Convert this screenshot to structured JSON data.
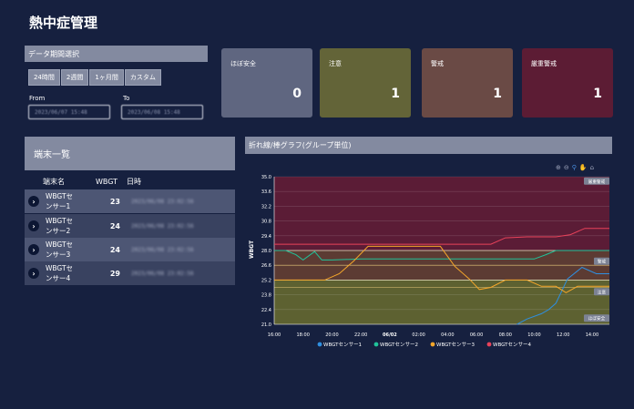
{
  "page": {
    "title": "熱中症管理"
  },
  "period": {
    "header": "データ期間選択",
    "buttons": [
      "24時間",
      "2週間",
      "1ヶ月間",
      "カスタム"
    ],
    "from_label": "From",
    "to_label": "To",
    "from_value": "2023/06/07 15:48",
    "to_value": "2023/06/08 15:48"
  },
  "cards": [
    {
      "label": "ほぼ安全",
      "value": "0",
      "color": "#5f6680"
    },
    {
      "label": "注意",
      "value": "1",
      "color": "#636438"
    },
    {
      "label": "警戒",
      "value": "1",
      "color": "#6a4a45"
    },
    {
      "label": "厳重警戒",
      "value": "1",
      "color": "#5c1c34"
    }
  ],
  "devices": {
    "header": "端末一覧",
    "columns": [
      "端末名",
      "WBGT",
      "日時"
    ],
    "rows": [
      {
        "name_line1": "WBGTセ",
        "name_line2": "ンサー1",
        "wbgt": "23",
        "date": "2023/06/08 23:02:56"
      },
      {
        "name_line1": "WBGTセ",
        "name_line2": "ンサー2",
        "wbgt": "24",
        "date": "2023/06/08 23:02:56"
      },
      {
        "name_line1": "WBGTセ",
        "name_line2": "ンサー3",
        "wbgt": "24",
        "date": "2023/06/08 23:02:56"
      },
      {
        "name_line1": "WBGTセ",
        "name_line2": "ンサー4",
        "wbgt": "29",
        "date": "2023/06/08 23:02:56"
      }
    ]
  },
  "chart_panel": {
    "header": "折れ線/棒グラフ(グループ単位)"
  },
  "chart_data": {
    "type": "line",
    "ylabel": "WBGT",
    "ylim": [
      21.0,
      35.0
    ],
    "y_ticks": [
      "21.0",
      "22.4",
      "23.8",
      "25.2",
      "26.6",
      "28.0",
      "29.4",
      "30.8",
      "32.2",
      "33.6",
      "35.0"
    ],
    "x_ticks": [
      "16:00",
      "18:00",
      "20:00",
      "22:00",
      "06/02",
      "02:00",
      "04:00",
      "06:00",
      "08:00",
      "10:00",
      "12:00",
      "14:00"
    ],
    "x_hours": [
      0,
      2,
      4,
      6,
      8,
      10,
      12,
      14,
      16,
      18,
      20,
      22
    ],
    "x_range_hours": [
      0,
      23.2
    ],
    "zones": [
      {
        "label": "厳重警戒",
        "from": 28.0,
        "to": 35.0,
        "color": "#5b1c36"
      },
      {
        "label": "警戒",
        "from": 25.2,
        "to": 28.0,
        "color": "#5c3b33"
      },
      {
        "label": "注意",
        "from": 21.0,
        "to": 25.2,
        "color": "#5d6131"
      }
    ],
    "zone_tags": [
      "厳重警戒",
      "警戒",
      "注意",
      "ほぼ安全"
    ],
    "series": [
      {
        "name": "WBGTセンサー1",
        "color": "#2f8fe0",
        "points": [
          [
            16.8,
            21.0
          ],
          [
            17.5,
            21.5
          ],
          [
            18.5,
            22.0
          ],
          [
            19.0,
            22.4
          ],
          [
            19.5,
            23.0
          ],
          [
            20.3,
            25.3
          ],
          [
            21.3,
            26.4
          ],
          [
            22.3,
            25.8
          ],
          [
            23.2,
            25.8
          ]
        ]
      },
      {
        "name": "WBGTセンサー2",
        "color": "#21c39a",
        "points": [
          [
            0,
            28.0
          ],
          [
            0.8,
            28.0
          ],
          [
            1.5,
            27.6
          ],
          [
            2.0,
            27.1
          ],
          [
            2.8,
            27.9
          ],
          [
            3.3,
            27.1
          ],
          [
            4.0,
            27.1
          ],
          [
            6.0,
            27.2
          ],
          [
            8.0,
            27.2
          ],
          [
            10.0,
            27.2
          ],
          [
            12.0,
            27.2
          ],
          [
            14.0,
            27.2
          ],
          [
            16.0,
            27.2
          ],
          [
            18.0,
            27.2
          ],
          [
            18.8,
            27.6
          ],
          [
            19.5,
            28.0
          ],
          [
            23.2,
            28.0
          ]
        ]
      },
      {
        "name": "WBGTセンサー3",
        "color": "#f4a62a",
        "points": [
          [
            0,
            25.2
          ],
          [
            2.0,
            25.2
          ],
          [
            3.5,
            25.2
          ],
          [
            4.5,
            25.8
          ],
          [
            5.5,
            27.0
          ],
          [
            6.5,
            28.4
          ],
          [
            8.0,
            28.4
          ],
          [
            10.0,
            28.4
          ],
          [
            11.5,
            28.4
          ],
          [
            12.5,
            26.5
          ],
          [
            13.5,
            25.3
          ],
          [
            14.2,
            24.3
          ],
          [
            15.0,
            24.5
          ],
          [
            16.0,
            25.2
          ],
          [
            17.5,
            25.2
          ],
          [
            18.5,
            24.6
          ],
          [
            19.5,
            24.6
          ],
          [
            20.2,
            24.0
          ],
          [
            21.0,
            24.6
          ],
          [
            22.0,
            24.6
          ],
          [
            23.2,
            24.6
          ]
        ]
      },
      {
        "name": "WBGTセンサー4",
        "color": "#e8425a",
        "points": [
          [
            0,
            28.6
          ],
          [
            4.0,
            28.6
          ],
          [
            8.0,
            28.6
          ],
          [
            12.0,
            28.6
          ],
          [
            15.0,
            28.6
          ],
          [
            16.0,
            29.2
          ],
          [
            17.5,
            29.3
          ],
          [
            19.5,
            29.3
          ],
          [
            20.5,
            29.5
          ],
          [
            21.5,
            30.1
          ],
          [
            23.2,
            30.1
          ]
        ]
      }
    ]
  }
}
